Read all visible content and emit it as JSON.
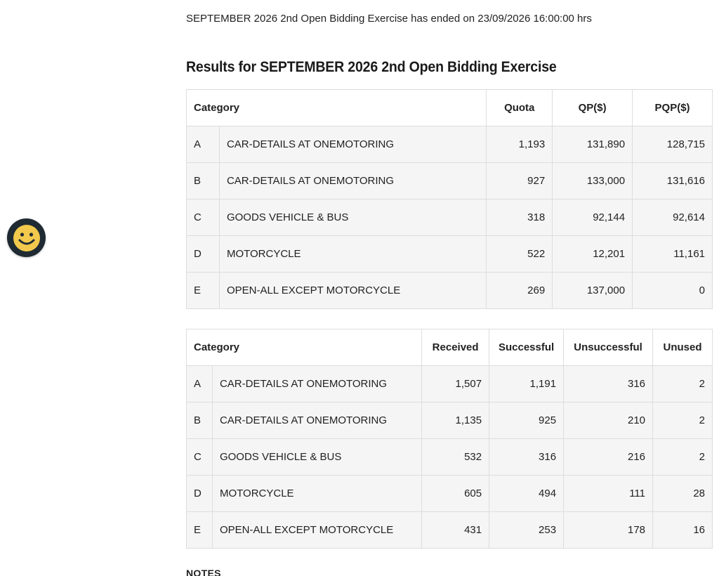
{
  "status_text": "SEPTEMBER 2026 2nd Open Bidding Exercise has ended on 23/09/2026 16:00:00 hrs",
  "results_title": "Results for SEPTEMBER 2026 2nd Open Bidding Exercise",
  "quota_table": {
    "headers": {
      "category": "Category",
      "quota": "Quota",
      "qp": "QP($)",
      "pqp": "PQP($)"
    },
    "rows": [
      {
        "cat": "A",
        "desc": "CAR-DETAILS AT ONEMOTORING",
        "quota": "1,193",
        "qp": "131,890",
        "pqp": "128,715"
      },
      {
        "cat": "B",
        "desc": "CAR-DETAILS AT ONEMOTORING",
        "quota": "927",
        "qp": "133,000",
        "pqp": "131,616"
      },
      {
        "cat": "C",
        "desc": "GOODS VEHICLE & BUS",
        "quota": "318",
        "qp": "92,144",
        "pqp": "92,614"
      },
      {
        "cat": "D",
        "desc": "MOTORCYCLE",
        "quota": "522",
        "qp": "12,201",
        "pqp": "11,161"
      },
      {
        "cat": "E",
        "desc": "OPEN-ALL EXCEPT MOTORCYCLE",
        "quota": "269",
        "qp": "137,000",
        "pqp": "0"
      }
    ]
  },
  "bids_table": {
    "headers": {
      "category": "Category",
      "received": "Received",
      "successful": "Successful",
      "unsuccessful": "Unsuccessful",
      "unused": "Unused"
    },
    "rows": [
      {
        "cat": "A",
        "desc": "CAR-DETAILS AT ONEMOTORING",
        "received": "1,507",
        "successful": "1,191",
        "unsuccessful": "316",
        "unused": "2"
      },
      {
        "cat": "B",
        "desc": "CAR-DETAILS AT ONEMOTORING",
        "received": "1,135",
        "successful": "925",
        "unsuccessful": "210",
        "unused": "2"
      },
      {
        "cat": "C",
        "desc": "GOODS VEHICLE & BUS",
        "received": "532",
        "successful": "316",
        "unsuccessful": "216",
        "unused": "2"
      },
      {
        "cat": "D",
        "desc": "MOTORCYCLE",
        "received": "605",
        "successful": "494",
        "unsuccessful": "111",
        "unused": "28"
      },
      {
        "cat": "E",
        "desc": "OPEN-ALL EXCEPT MOTORCYCLE",
        "received": "431",
        "successful": "253",
        "unsuccessful": "178",
        "unused": "16"
      }
    ]
  },
  "notes_heading": "NOTES",
  "feedback_widget": {
    "icon": "smiley-icon",
    "color": "#1f2a33",
    "face_color": "#f2c94c"
  }
}
